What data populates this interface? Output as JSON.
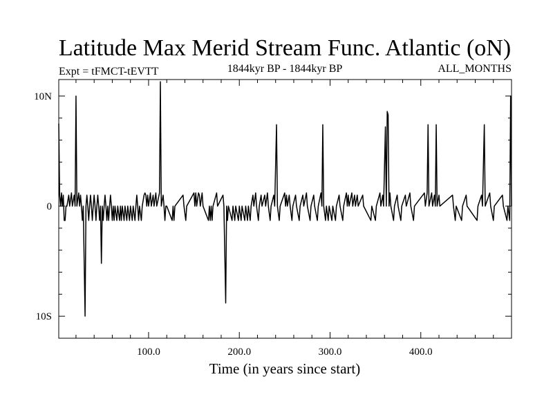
{
  "chart_data": {
    "type": "line",
    "title": "Latitude Max Merid Stream Func. Atlantic (oN)",
    "left_label": "Expt = tFMCT-tEVTT",
    "center_label": "1844kyr BP - 1844kyr BP",
    "right_label": "ALL_MONTHS",
    "xlabel": "Time (in years since start)",
    "ylabel": "",
    "xlim": [
      1,
      500
    ],
    "ylim": [
      -12,
      11.5
    ],
    "x_ticks": [
      {
        "value": 100,
        "label": "100.0"
      },
      {
        "value": 200,
        "label": "200.0"
      },
      {
        "value": 300,
        "label": "300.0"
      },
      {
        "value": 400,
        "label": "400.0"
      }
    ],
    "y_ticks": [
      {
        "value": 10,
        "label": "10N"
      },
      {
        "value": 0,
        "label": "0"
      },
      {
        "value": -10,
        "label": "10S"
      }
    ],
    "series": [
      {
        "name": "",
        "color": "#000000",
        "points": [
          [
            1,
            7.5
          ],
          [
            2,
            1
          ],
          [
            3,
            0
          ],
          [
            4,
            1.2
          ],
          [
            5,
            0
          ],
          [
            6,
            1
          ],
          [
            7,
            -1.3
          ],
          [
            8,
            -1.3
          ],
          [
            9,
            0
          ],
          [
            10,
            0
          ],
          [
            12,
            1
          ],
          [
            13,
            0
          ],
          [
            15,
            1.2
          ],
          [
            16,
            0
          ],
          [
            18,
            1
          ],
          [
            19,
            0
          ],
          [
            20,
            10
          ],
          [
            21,
            0
          ],
          [
            23,
            1.2
          ],
          [
            24,
            0
          ],
          [
            25,
            1
          ],
          [
            26,
            0
          ],
          [
            27,
            -1.3
          ],
          [
            28,
            0
          ],
          [
            30,
            -10
          ],
          [
            31,
            0
          ],
          [
            32,
            1
          ],
          [
            33,
            0
          ],
          [
            34,
            -1.3
          ],
          [
            35,
            0
          ],
          [
            36,
            1
          ],
          [
            37,
            0
          ],
          [
            38,
            -1.3
          ],
          [
            39,
            0
          ],
          [
            40,
            1
          ],
          [
            41,
            0
          ],
          [
            42,
            -1.3
          ],
          [
            43,
            0
          ],
          [
            44,
            1
          ],
          [
            45,
            0
          ],
          [
            46,
            -1.3
          ],
          [
            47,
            0
          ],
          [
            48,
            -5.2
          ],
          [
            49,
            0
          ],
          [
            50,
            -1.3
          ],
          [
            51,
            0
          ],
          [
            52,
            1
          ],
          [
            53,
            0
          ],
          [
            54,
            -1.3
          ],
          [
            55,
            0
          ],
          [
            56,
            -1.3
          ],
          [
            57,
            0
          ],
          [
            58,
            1
          ],
          [
            59,
            0
          ],
          [
            60,
            -1.3
          ],
          [
            61,
            0
          ],
          [
            62,
            -1.3
          ],
          [
            63,
            0
          ],
          [
            65,
            -1.3
          ],
          [
            66,
            0
          ],
          [
            68,
            -1.3
          ],
          [
            69,
            0
          ],
          [
            70,
            -1.3
          ],
          [
            71,
            0
          ],
          [
            73,
            -1.3
          ],
          [
            74,
            0
          ],
          [
            76,
            -1.3
          ],
          [
            77,
            0
          ],
          [
            79,
            -1.3
          ],
          [
            80,
            0
          ],
          [
            82,
            -1.3
          ],
          [
            83,
            0
          ],
          [
            85,
            -1.3
          ],
          [
            86,
            0
          ],
          [
            87,
            1
          ],
          [
            88,
            0
          ],
          [
            89,
            -1.3
          ],
          [
            90,
            0
          ],
          [
            92,
            -1.3
          ],
          [
            93,
            0
          ],
          [
            95,
            1
          ],
          [
            96,
            1.2
          ],
          [
            97,
            1
          ],
          [
            98,
            0
          ],
          [
            99,
            1
          ],
          [
            100,
            0
          ],
          [
            102,
            1.2
          ],
          [
            103,
            0
          ],
          [
            105,
            1
          ],
          [
            106,
            0
          ],
          [
            108,
            1.2
          ],
          [
            109,
            0
          ],
          [
            112,
            1.2
          ],
          [
            113,
            11.3
          ],
          [
            114,
            0
          ],
          [
            116,
            1
          ],
          [
            117,
            0
          ],
          [
            118,
            -1.3
          ],
          [
            119,
            0
          ],
          [
            120,
            0
          ],
          [
            126,
            -1.3
          ],
          [
            127,
            0
          ],
          [
            128,
            -1.3
          ],
          [
            129,
            0
          ],
          [
            138,
            1
          ],
          [
            139,
            0
          ],
          [
            141,
            -1.3
          ],
          [
            142,
            0
          ],
          [
            150,
            1.2
          ],
          [
            151,
            0
          ],
          [
            152,
            1.2
          ],
          [
            153,
            0
          ],
          [
            155,
            1.2
          ],
          [
            156,
            1
          ],
          [
            157,
            0
          ],
          [
            159,
            1.2
          ],
          [
            160,
            0
          ],
          [
            166,
            -1.3
          ],
          [
            167,
            0
          ],
          [
            168,
            -1.3
          ],
          [
            169,
            0
          ],
          [
            170,
            -1.3
          ],
          [
            171,
            0
          ],
          [
            175,
            1.2
          ],
          [
            176,
            0
          ],
          [
            182,
            1
          ],
          [
            183,
            0
          ],
          [
            185,
            -8.8
          ],
          [
            186,
            0
          ],
          [
            187,
            -1.3
          ],
          [
            188,
            0
          ],
          [
            192,
            -1.3
          ],
          [
            193,
            0
          ],
          [
            195,
            -1.3
          ],
          [
            196,
            0
          ],
          [
            199,
            -1.3
          ],
          [
            200,
            0
          ],
          [
            202,
            -1.3
          ],
          [
            203,
            0
          ],
          [
            206,
            -1.3
          ],
          [
            207,
            0
          ],
          [
            209,
            -1.3
          ],
          [
            210,
            0
          ],
          [
            212,
            -1.3
          ],
          [
            213,
            0
          ],
          [
            215,
            1
          ],
          [
            216,
            0
          ],
          [
            218,
            1.2
          ],
          [
            219,
            0
          ],
          [
            221,
            -1.3
          ],
          [
            222,
            0
          ],
          [
            224,
            1
          ],
          [
            225,
            0
          ],
          [
            228,
            1
          ],
          [
            229,
            0
          ],
          [
            231,
            1.2
          ],
          [
            232,
            0
          ],
          [
            234,
            -1.3
          ],
          [
            235,
            0
          ],
          [
            238,
            1
          ],
          [
            239,
            0
          ],
          [
            241,
            7.4
          ],
          [
            242,
            0
          ],
          [
            244,
            -1.3
          ],
          [
            245,
            0
          ],
          [
            250,
            1.2
          ],
          [
            251,
            0
          ],
          [
            252,
            1
          ],
          [
            253,
            0
          ],
          [
            255,
            1
          ],
          [
            256,
            0
          ],
          [
            258,
            -1.3
          ],
          [
            259,
            0
          ],
          [
            262,
            1
          ],
          [
            263,
            0
          ],
          [
            266,
            -1.3
          ],
          [
            267,
            0
          ],
          [
            270,
            1
          ],
          [
            271,
            0
          ],
          [
            274,
            1.2
          ],
          [
            275,
            0
          ],
          [
            278,
            -1.3
          ],
          [
            279,
            0
          ],
          [
            282,
            1
          ],
          [
            283,
            0
          ],
          [
            286,
            -1.3
          ],
          [
            287,
            0
          ],
          [
            290,
            1.2
          ],
          [
            291,
            0
          ],
          [
            292,
            7.4
          ],
          [
            293,
            0
          ],
          [
            295,
            -1.3
          ],
          [
            296,
            0
          ],
          [
            298,
            -1.3
          ],
          [
            299,
            0
          ],
          [
            302,
            -1.3
          ],
          [
            303,
            0
          ],
          [
            306,
            -1.3
          ],
          [
            307,
            0
          ],
          [
            310,
            1
          ],
          [
            311,
            0
          ],
          [
            314,
            -1.3
          ],
          [
            315,
            0
          ],
          [
            318,
            1.2
          ],
          [
            319,
            0
          ],
          [
            320,
            1
          ],
          [
            321,
            0
          ],
          [
            324,
            1.2
          ],
          [
            325,
            0
          ],
          [
            327,
            1
          ],
          [
            328,
            0
          ],
          [
            330,
            1
          ],
          [
            331,
            0
          ],
          [
            336,
            1
          ],
          [
            337,
            0
          ],
          [
            345,
            -1.3
          ],
          [
            346,
            0
          ],
          [
            350,
            -1.3
          ],
          [
            351,
            0
          ],
          [
            355,
            1.2
          ],
          [
            356,
            0
          ],
          [
            358,
            1
          ],
          [
            359,
            0
          ],
          [
            361,
            7.2
          ],
          [
            362,
            0
          ],
          [
            363,
            8.6
          ],
          [
            364,
            8.3
          ],
          [
            365,
            0
          ],
          [
            366,
            1.2
          ],
          [
            367,
            0
          ],
          [
            370,
            -1.3
          ],
          [
            371,
            0
          ],
          [
            374,
            1
          ],
          [
            375,
            0
          ],
          [
            378,
            -1.3
          ],
          [
            379,
            0
          ],
          [
            383,
            1
          ],
          [
            384,
            0
          ],
          [
            388,
            1.2
          ],
          [
            389,
            0
          ],
          [
            392,
            -1.3
          ],
          [
            393,
            0
          ],
          [
            404,
            1.2
          ],
          [
            405,
            0
          ],
          [
            407,
            1.2
          ],
          [
            408,
            7.4
          ],
          [
            409,
            0
          ],
          [
            412,
            1.2
          ],
          [
            413,
            0
          ],
          [
            415,
            1
          ],
          [
            416,
            0
          ],
          [
            417,
            7.4
          ],
          [
            418,
            0
          ],
          [
            420,
            1
          ],
          [
            421,
            0
          ],
          [
            435,
            1
          ],
          [
            436,
            0
          ],
          [
            438,
            -1.3
          ],
          [
            439,
            0
          ],
          [
            445,
            -1.3
          ],
          [
            446,
            0
          ],
          [
            450,
            1
          ],
          [
            451,
            0
          ],
          [
            462,
            -1.3
          ],
          [
            463,
            0
          ],
          [
            467,
            1
          ],
          [
            468,
            0
          ],
          [
            470,
            7.4
          ],
          [
            471,
            0
          ],
          [
            476,
            1.2
          ],
          [
            477,
            0
          ],
          [
            480,
            -1.3
          ],
          [
            481,
            0
          ],
          [
            490,
            1
          ],
          [
            491,
            0
          ],
          [
            495,
            -1.3
          ],
          [
            496,
            0
          ],
          [
            498,
            -1.3
          ],
          [
            499,
            10
          ],
          [
            500,
            0
          ]
        ]
      }
    ]
  }
}
